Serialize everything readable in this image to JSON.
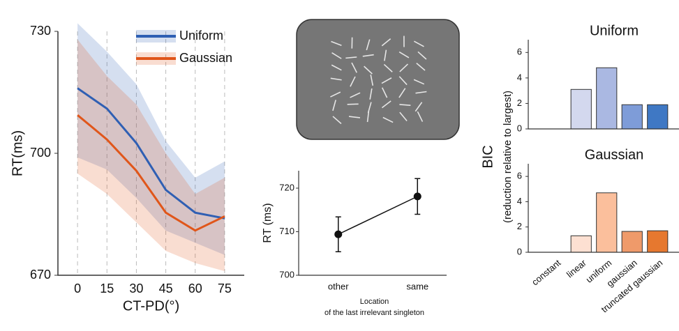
{
  "chart_data": [
    {
      "type": "line",
      "xlabel": "CT-PD(°)",
      "ylabel": "RT(ms)",
      "x": [
        0,
        15,
        30,
        45,
        60,
        75
      ],
      "xlim": [
        -10,
        85
      ],
      "xticks": [
        0,
        15,
        30,
        45,
        60,
        75
      ],
      "ylim": [
        670,
        730
      ],
      "yticks": [
        670,
        700,
        730
      ],
      "grid": true,
      "legend": "top-right",
      "series": [
        {
          "name": "Uniform",
          "color": "#2f5fb3",
          "values": [
            716,
            711,
            702.5,
            691,
            685.4,
            684
          ],
          "band_lower": [
            699,
            696,
            689,
            681,
            678,
            675
          ],
          "band_upper": [
            732,
            725,
            717,
            703,
            694,
            698
          ]
        },
        {
          "name": "Gaussian",
          "color": "#e0561a",
          "values": [
            709.4,
            703.4,
            695.7,
            685.4,
            681,
            684.5
          ],
          "band_lower": [
            695,
            690,
            683,
            676,
            673,
            671
          ],
          "band_upper": [
            728,
            719,
            712,
            700,
            690,
            694
          ]
        }
      ]
    },
    {
      "type": "errorbar",
      "ylabel": "RT (ms)",
      "xlabel": [
        "Location",
        "of the last irrelevant singleton"
      ],
      "categories": [
        "other",
        "same"
      ],
      "values": [
        709.4,
        718.1
      ],
      "errors": [
        4,
        4.1
      ],
      "ylim": [
        700,
        724
      ],
      "yticks": [
        700,
        710,
        720
      ],
      "color": "#111111"
    },
    {
      "type": "bar",
      "title": "Uniform",
      "ylabel": [
        "BIC",
        "(reduction relative to largest)"
      ],
      "categories": [
        null,
        null,
        null,
        null,
        null
      ],
      "values": [
        0,
        3.1,
        4.8,
        1.9,
        1.9
      ],
      "colors": [
        "#d3d8ee",
        "#d3d8ee",
        "#aab8e2",
        "#7e9cd8",
        "#3f78c4"
      ],
      "ylim": [
        0,
        7
      ],
      "yticks": [
        0,
        2,
        4,
        6
      ]
    },
    {
      "type": "bar",
      "title": "Gaussian",
      "categories": [
        "constant",
        "linear",
        "uniform",
        "gaussian",
        "truncated gaussian"
      ],
      "values": [
        0,
        1.3,
        4.7,
        1.65,
        1.7
      ],
      "colors": [
        "#fde0d2",
        "#fde0d2",
        "#fbbf9c",
        "#ef9a6a",
        "#e6782f"
      ],
      "ylim": [
        0,
        7
      ],
      "yticks": [
        0,
        2,
        4,
        6
      ]
    }
  ]
}
